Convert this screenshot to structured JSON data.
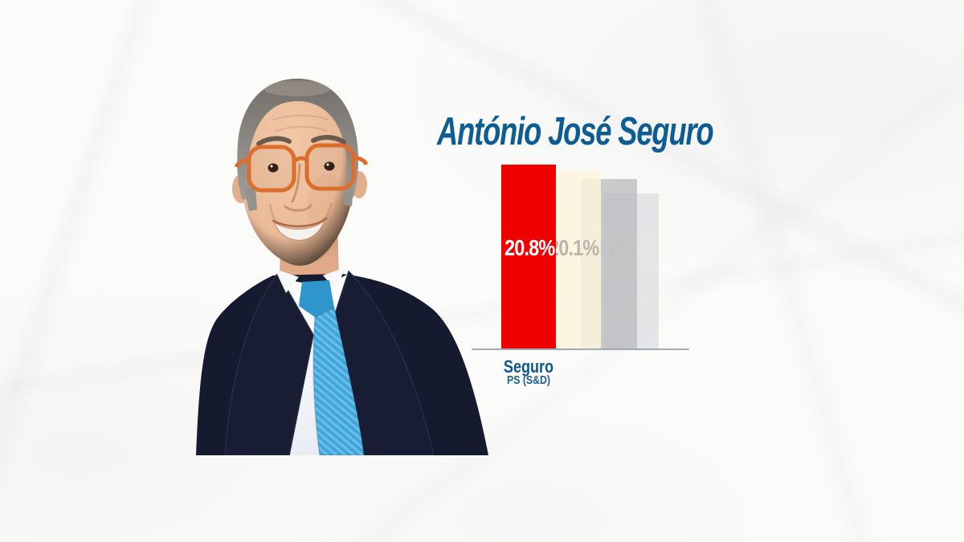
{
  "title": {
    "text": "António José Seguro",
    "color": "#0d5d92"
  },
  "portrait": {
    "alt": "portrait of António José Seguro — grey-haired man with orange glasses, navy suit, white shirt, light blue tie"
  },
  "chart_data": {
    "type": "bar",
    "title": "António José Seguro",
    "categories": [
      "Seguro"
    ],
    "category_sublabels": [
      "PS (S&D)"
    ],
    "series": [
      {
        "name": "current-poll",
        "label": "20.8%",
        "value": 20.8,
        "color": "#f10000",
        "label_color": "#ffffff",
        "label_opacity": 1
      },
      {
        "name": "previous-poll-1",
        "label": "20.1%",
        "value": 20.1,
        "color": "rgba(251,244,221,0.85)",
        "label_color": "#b3b0a8",
        "label_opacity": 0.9
      },
      {
        "name": "previous-poll-2",
        "label": "19.2%",
        "value": 19.2,
        "color": "rgba(186,186,190,0.75)",
        "label_color": "#bfbfc2",
        "label_opacity": 0.45
      },
      {
        "name": "previous-poll-3",
        "label": "",
        "value": 17.5,
        "color": "rgba(224,224,228,0.85)",
        "label_color": "#d0d0d3",
        "label_opacity": 0
      }
    ],
    "ylim": [
      0,
      23.2
    ],
    "grid": false,
    "legend": false,
    "baseline_axis": true,
    "value_label_position": "inside-upper-middle"
  },
  "axis": {
    "color": "#9faab6"
  },
  "colors": {
    "background": "#fbfbf9",
    "title_blue": "#0d5d92",
    "category_blue": "#0f5789",
    "sublabel_blue": "#19618f",
    "bar_red": "#f10000"
  }
}
